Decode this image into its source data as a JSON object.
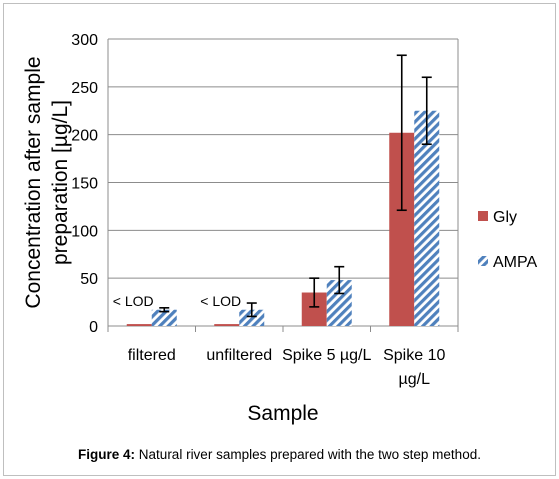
{
  "chart_data": {
    "type": "bar",
    "categories": [
      [
        "filtered"
      ],
      [
        "unfiltered"
      ],
      [
        "Spike 5 µg/L"
      ],
      [
        "Spike 10",
        "µg/L"
      ]
    ],
    "series": [
      {
        "name": "Gly",
        "color": "#c0504d",
        "pattern": "solid",
        "values": [
          2,
          2,
          35,
          202
        ],
        "errors": [
          null,
          null,
          15,
          81
        ]
      },
      {
        "name": "AMPA",
        "color": "#4f81bd",
        "pattern": "hatched",
        "values": [
          17,
          17,
          48,
          225
        ],
        "errors": [
          2,
          7,
          14,
          35
        ]
      }
    ],
    "annotations": [
      {
        "category": 0,
        "text": "< LOD"
      },
      {
        "category": 1,
        "text": "< LOD"
      }
    ],
    "xlabel": "Sample",
    "ylabel_lines": [
      "Concentration after sample",
      "preparation [µg/L]"
    ],
    "ylim": [
      0,
      300
    ],
    "yticks": [
      0,
      50,
      100,
      150,
      200,
      250,
      300
    ],
    "grid": true,
    "legend_position": "right"
  },
  "caption": {
    "label": "Figure 4:",
    "text": " Natural river samples prepared with the two step method."
  }
}
